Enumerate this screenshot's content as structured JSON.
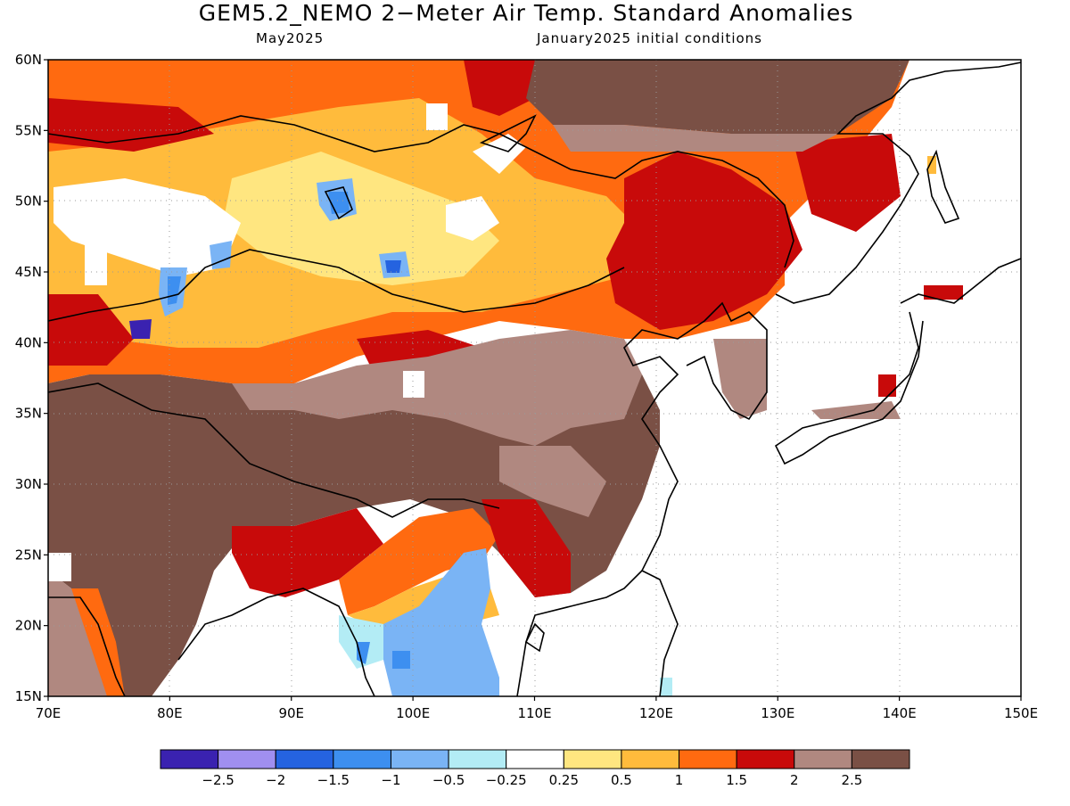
{
  "title": "GEM5.2_NEMO 2−Meter Air Temp. Standard Anomalies",
  "subtitle_left": "May2025",
  "subtitle_right": "January2025 initial conditions",
  "lat_ticks": [
    "60N",
    "55N",
    "50N",
    "45N",
    "40N",
    "35N",
    "30N",
    "25N",
    "20N",
    "15N"
  ],
  "lon_ticks": [
    "70E",
    "80E",
    "90E",
    "100E",
    "110E",
    "120E",
    "130E",
    "140E",
    "150E"
  ],
  "colorbar": {
    "colors": [
      "#3a22b0",
      "#a08ff0",
      "#2563e0",
      "#3d8ff0",
      "#7ab4f5",
      "#b3ecf5",
      "#ffffff",
      "#ffe680",
      "#ffbb3c",
      "#ff6a10",
      "#c80a0a",
      "#b08880",
      "#7a5045"
    ],
    "labels": [
      "−2.5",
      "−2",
      "−1.5",
      "−1",
      "−0.5",
      "−0.25",
      "0.25",
      "0.5",
      "1",
      "1.5",
      "2",
      "2.5"
    ]
  }
}
